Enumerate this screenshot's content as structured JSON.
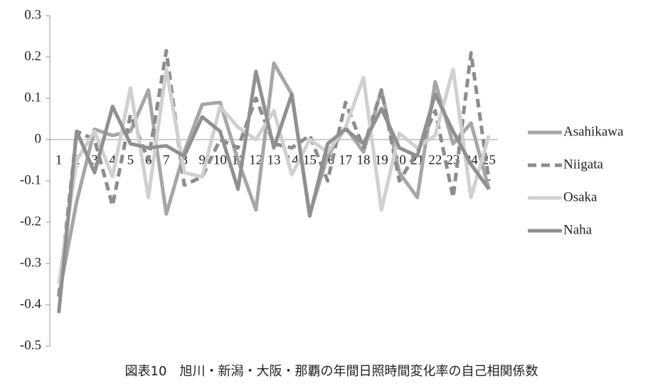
{
  "chart_data": {
    "type": "line",
    "caption": "図表10　旭川・新潟・大阪・那覇の年間日照時間変化率の自己相関係数",
    "categories": [
      "1",
      "2",
      "3",
      "4",
      "5",
      "6",
      "7",
      "8",
      "9",
      "10",
      "11",
      "12",
      "13",
      "14",
      "15",
      "16",
      "17",
      "18",
      "19",
      "20",
      "21",
      "22",
      "23",
      "24",
      "25"
    ],
    "series": [
      {
        "name": "Asahikawa",
        "color": "#a6a6a6",
        "line_style": "solid",
        "values": [
          -0.38,
          -0.15,
          0.025,
          0.01,
          0.02,
          0.12,
          -0.18,
          -0.03,
          0.085,
          0.09,
          -0.05,
          -0.17,
          0.185,
          0.11,
          -0.18,
          -0.04,
          0.03,
          -0.03,
          0.12,
          -0.08,
          -0.14,
          0.14,
          -0.01,
          0.04,
          -0.12
        ]
      },
      {
        "name": "Niigata",
        "color": "#8c8c8c",
        "line_style": "dashed",
        "values": [
          -0.38,
          0.02,
          0.0,
          -0.16,
          0.06,
          -0.05,
          0.215,
          -0.11,
          -0.09,
          0.0,
          -0.02,
          0.1,
          -0.01,
          -0.02,
          0.01,
          -0.1,
          0.09,
          -0.02,
          0.12,
          -0.1,
          -0.03,
          0.07,
          -0.14,
          0.21,
          -0.1
        ]
      },
      {
        "name": "Osaka",
        "color": "#d0d0d0",
        "line_style": "solid",
        "values": [
          -0.35,
          -0.05,
          0.02,
          -0.09,
          0.125,
          -0.14,
          0.17,
          -0.08,
          -0.09,
          0.08,
          0.03,
          0.0,
          0.07,
          -0.085,
          0.0,
          -0.03,
          0.03,
          0.15,
          -0.17,
          0.015,
          -0.02,
          0.01,
          0.17,
          -0.14,
          0.01
        ]
      },
      {
        "name": "Naha",
        "color": "#909090",
        "line_style": "solid",
        "values": [
          -0.42,
          0.02,
          -0.08,
          0.08,
          -0.01,
          -0.02,
          -0.015,
          -0.04,
          0.055,
          0.02,
          -0.12,
          0.165,
          -0.02,
          0.11,
          -0.185,
          -0.01,
          0.025,
          -0.01,
          0.075,
          -0.02,
          -0.04,
          0.11,
          0.02,
          -0.06,
          -0.12
        ]
      }
    ],
    "ylim": [
      -0.5,
      0.3
    ],
    "yticks": [
      -0.5,
      -0.4,
      -0.3,
      -0.2,
      -0.1,
      0,
      0.1,
      0.2,
      0.3
    ],
    "grid": false,
    "legend": "right"
  }
}
